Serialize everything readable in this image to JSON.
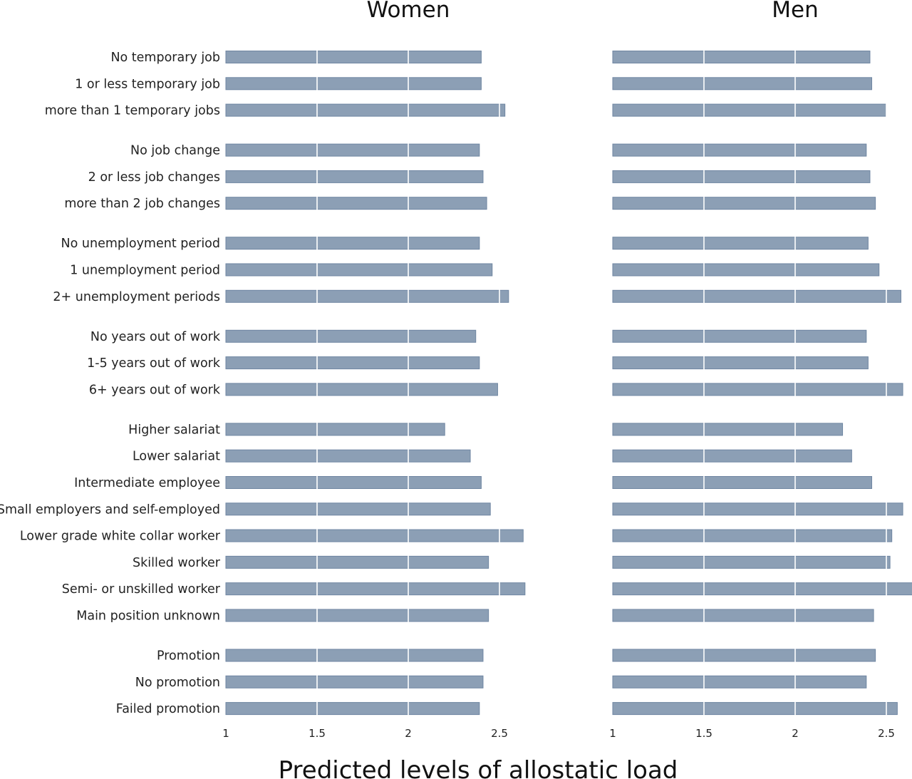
{
  "chart_data": {
    "type": "bar",
    "orientation": "horizontal",
    "xlabel": "Predicted levels of allostatic load",
    "xlim": [
      1,
      2.6
    ],
    "xticks": [
      "1",
      "1.5",
      "2",
      "2.5"
    ],
    "grid": true,
    "bar_color": "#8c9fb5",
    "groups": [
      [
        "No temporary job",
        "1 or less temporary job",
        "more than 1 temporary jobs"
      ],
      [
        "No job change",
        "2 or less job changes",
        "more than 2 job changes"
      ],
      [
        "No unemployment period",
        "1 unemployment period",
        "2+ unemployment periods"
      ],
      [
        "No years out of work",
        "1-5 years out of work",
        "6+ years out of work"
      ],
      [
        "Higher salariat",
        "Lower salariat",
        "Intermediate employee",
        "Small employers and self-employed",
        "Lower grade white collar worker",
        "Skilled worker",
        "Semi- or unskilled worker",
        "Main position unknown"
      ],
      [
        "Promotion",
        "No promotion",
        "Failed promotion"
      ]
    ],
    "categories": [
      "No temporary job",
      "1 or less temporary job",
      "more than 1 temporary jobs",
      "No job change",
      "2 or less job changes",
      "more than 2 job changes",
      "No unemployment period",
      "1 unemployment period",
      "2+ unemployment periods",
      "No years out of work",
      "1-5 years out of work",
      "6+ years out of work",
      "Higher salariat",
      "Lower salariat",
      "Intermediate employee",
      "Small employers and self-employed",
      "Lower grade white collar worker",
      "Skilled worker",
      "Semi- or unskilled worker",
      "Main position unknown",
      "Promotion",
      "No promotion",
      "Failed promotion"
    ],
    "series": [
      {
        "name": "Women",
        "values": [
          2.4,
          2.4,
          2.53,
          2.39,
          2.41,
          2.43,
          2.39,
          2.46,
          2.55,
          2.37,
          2.39,
          2.49,
          2.2,
          2.34,
          2.4,
          2.45,
          2.63,
          2.44,
          2.64,
          2.44,
          2.41,
          2.41,
          2.39
        ]
      },
      {
        "name": "Men",
        "values": [
          2.41,
          2.42,
          2.5,
          2.39,
          2.41,
          2.44,
          2.4,
          2.46,
          2.58,
          2.39,
          2.4,
          2.59,
          2.26,
          2.31,
          2.42,
          2.59,
          2.53,
          2.52,
          2.65,
          2.43,
          2.44,
          2.39,
          2.56
        ]
      }
    ]
  }
}
